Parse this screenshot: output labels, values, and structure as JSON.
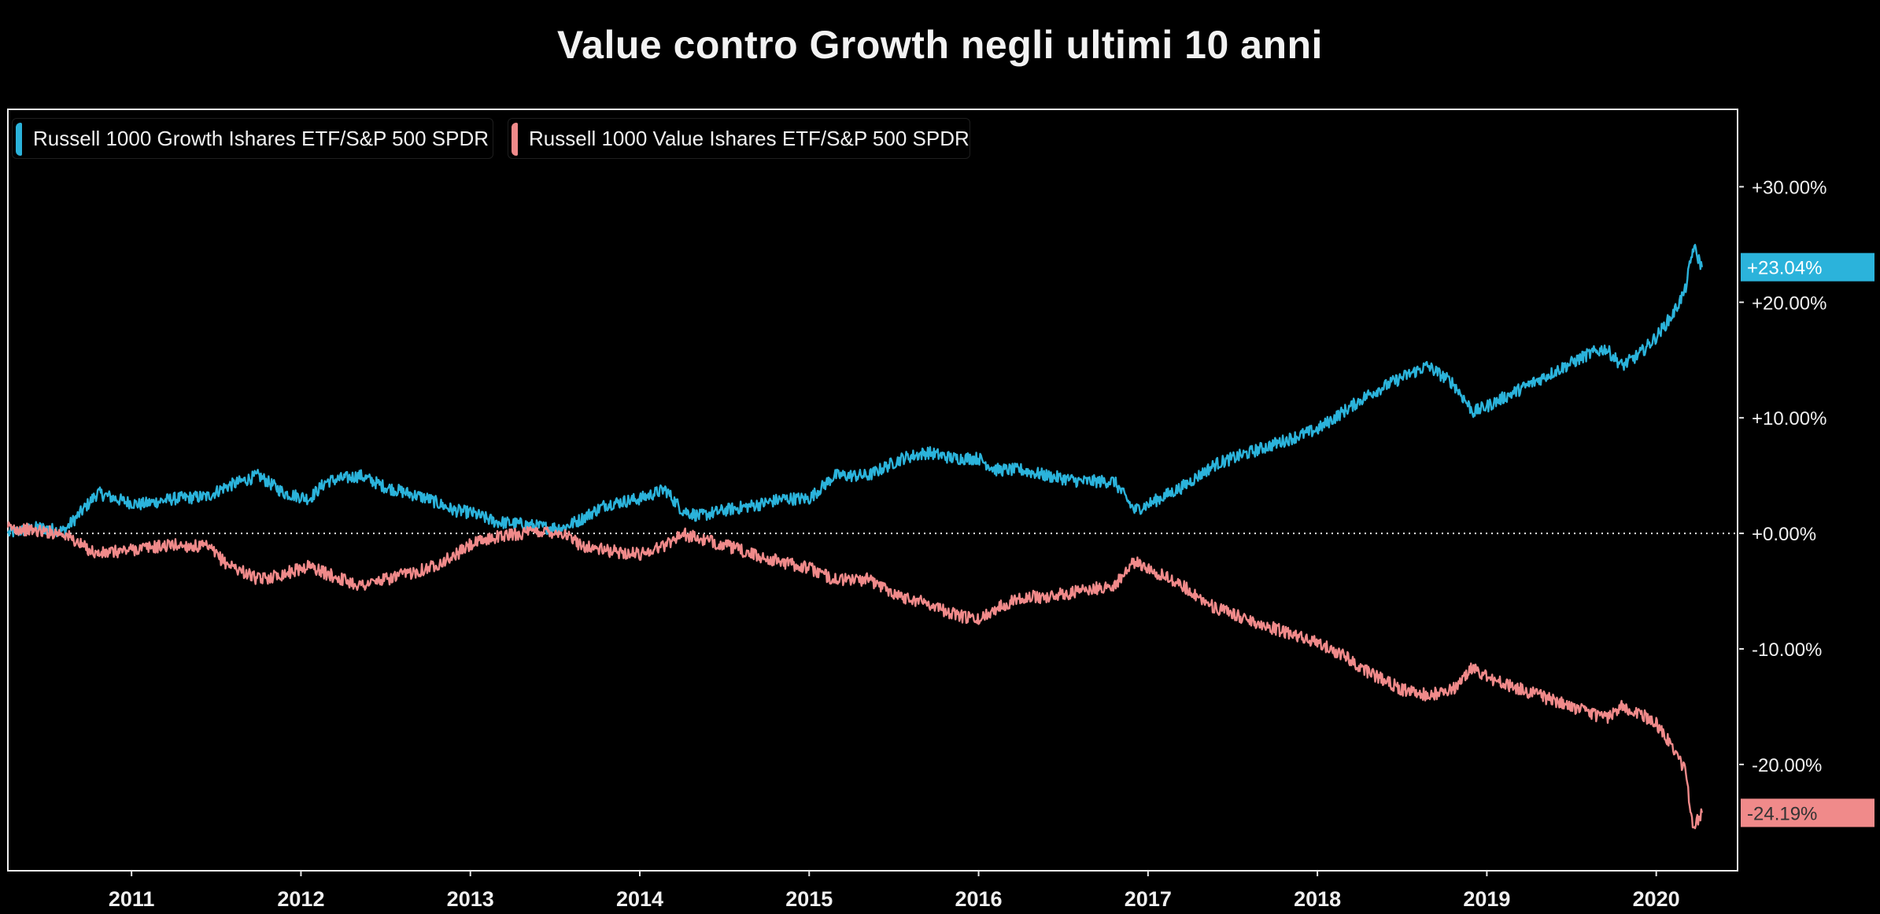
{
  "chart_data": {
    "type": "line",
    "title": "Value contro Growth negli ultimi 10 anni",
    "x_ticks": [
      "2011",
      "2012",
      "2013",
      "2014",
      "2015",
      "2016",
      "2017",
      "2018",
      "2019",
      "2020"
    ],
    "y_ticks": [
      "+30.00%",
      "+20.00%",
      "+10.00%",
      "+0.00%",
      "-10.00%",
      "-20.00%"
    ],
    "y_tick_values": [
      30,
      20,
      10,
      0,
      -10,
      -20
    ],
    "xlim": [
      2010.27,
      2020.48
    ],
    "ylim": [
      -29.2,
      36.7
    ],
    "reference_line": 0,
    "legend_position": "top-left",
    "grid": false,
    "series": [
      {
        "name": "Russell 1000 Growth Ishares ETF/S&P 500 SPDR",
        "color": "#2bb3db",
        "last_value_label": "+23.04%",
        "last_value": 23.04,
        "x": [
          2010.27,
          2010.45,
          2010.6,
          2010.7,
          2010.8,
          2010.95,
          2011.05,
          2011.25,
          2011.45,
          2011.55,
          2011.75,
          2011.9,
          2012.05,
          2012.15,
          2012.35,
          2012.5,
          2012.75,
          2012.9,
          2013.0,
          2013.15,
          2013.3,
          2013.45,
          2013.55,
          2013.65,
          2013.8,
          2014.0,
          2014.15,
          2014.25,
          2014.35,
          2014.5,
          2014.7,
          2014.85,
          2015.0,
          2015.15,
          2015.35,
          2015.55,
          2015.7,
          2015.85,
          2016.0,
          2016.1,
          2016.25,
          2016.4,
          2016.6,
          2016.8,
          2016.92,
          2017.0,
          2017.2,
          2017.4,
          2017.6,
          2017.8,
          2018.0,
          2018.15,
          2018.3,
          2018.5,
          2018.65,
          2018.8,
          2018.92,
          2019.0,
          2019.2,
          2019.4,
          2019.6,
          2019.7,
          2019.8,
          2019.9,
          2020.0,
          2020.1,
          2020.17,
          2020.22,
          2020.27
        ],
        "values": [
          0.0,
          0.5,
          0.2,
          1.8,
          3.5,
          2.8,
          2.5,
          3.0,
          3.2,
          4.0,
          5.0,
          3.5,
          3.0,
          4.5,
          5.0,
          4.0,
          3.0,
          2.0,
          1.8,
          1.0,
          0.8,
          0.5,
          0.5,
          1.2,
          2.5,
          3.0,
          3.8,
          2.0,
          1.5,
          2.0,
          2.5,
          3.0,
          3.0,
          5.0,
          5.0,
          6.5,
          7.0,
          6.5,
          6.5,
          5.5,
          5.5,
          5.0,
          4.5,
          4.5,
          2.0,
          2.5,
          4.0,
          6.0,
          7.0,
          8.0,
          9.0,
          10.5,
          12.0,
          13.5,
          14.5,
          13.0,
          10.5,
          11.0,
          12.5,
          14.0,
          15.5,
          16.0,
          14.5,
          15.5,
          17.0,
          19.0,
          21.0,
          24.8,
          23.04
        ]
      },
      {
        "name": "Russell 1000 Value Ishares ETF/S&P 500 SPDR",
        "color": "#f08a8a",
        "last_value_label": "-24.19%",
        "last_value": -24.19,
        "x": [
          2010.27,
          2010.45,
          2010.6,
          2010.7,
          2010.8,
          2010.95,
          2011.05,
          2011.25,
          2011.45,
          2011.55,
          2011.75,
          2011.9,
          2012.05,
          2012.15,
          2012.35,
          2012.5,
          2012.75,
          2012.9,
          2013.0,
          2013.15,
          2013.3,
          2013.45,
          2013.55,
          2013.65,
          2013.8,
          2014.0,
          2014.15,
          2014.25,
          2014.35,
          2014.5,
          2014.7,
          2014.85,
          2015.0,
          2015.15,
          2015.35,
          2015.55,
          2015.7,
          2015.85,
          2016.0,
          2016.1,
          2016.25,
          2016.4,
          2016.6,
          2016.8,
          2016.92,
          2017.0,
          2017.2,
          2017.4,
          2017.6,
          2017.8,
          2018.0,
          2018.15,
          2018.3,
          2018.5,
          2018.65,
          2018.8,
          2018.92,
          2019.0,
          2019.2,
          2019.4,
          2019.6,
          2019.7,
          2019.8,
          2019.9,
          2020.0,
          2020.1,
          2020.17,
          2020.22,
          2020.27
        ],
        "values": [
          0.5,
          0.2,
          0.0,
          -1.0,
          -1.8,
          -1.5,
          -1.3,
          -1.0,
          -1.2,
          -2.5,
          -4.0,
          -3.5,
          -2.8,
          -3.5,
          -4.5,
          -4.0,
          -3.0,
          -2.0,
          -1.0,
          -0.3,
          0.0,
          0.2,
          0.0,
          -1.0,
          -1.5,
          -1.8,
          -1.0,
          0.0,
          -0.5,
          -1.0,
          -2.0,
          -2.5,
          -3.0,
          -4.0,
          -4.0,
          -5.5,
          -6.0,
          -7.0,
          -7.5,
          -6.5,
          -5.5,
          -5.5,
          -5.0,
          -4.5,
          -2.5,
          -3.0,
          -4.5,
          -6.5,
          -7.5,
          -8.5,
          -9.5,
          -10.5,
          -12.0,
          -13.5,
          -14.0,
          -13.5,
          -11.5,
          -12.5,
          -13.5,
          -14.5,
          -15.5,
          -16.0,
          -15.0,
          -15.5,
          -16.5,
          -18.5,
          -20.5,
          -25.5,
          -24.19
        ]
      }
    ]
  }
}
